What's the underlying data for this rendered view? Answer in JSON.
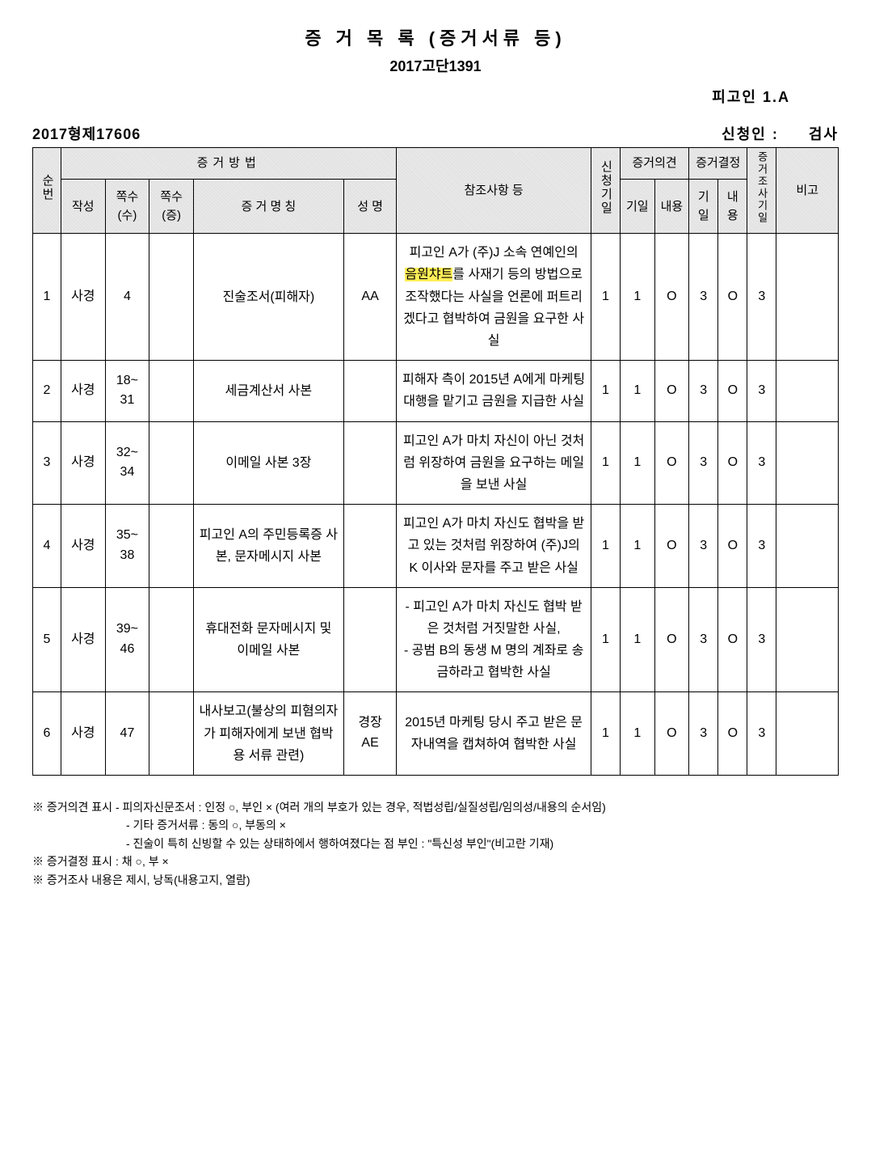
{
  "header": {
    "title": "증 거 목 록 (증거서류 등)",
    "case_no": "2017고단1391",
    "defendant": "피고인 1.A",
    "file_no": "2017형제17606",
    "applicant_label": "신청인 :",
    "applicant_role": "검사"
  },
  "table": {
    "group_method": "증거방법",
    "group_opinion": "증거의견",
    "group_decision": "증거결정",
    "col_num": "순번",
    "col_author": "작성",
    "col_page_su": "쪽수(수)",
    "col_page_jeung": "쪽수(증)",
    "col_evidence_name": "증 거 명 칭",
    "col_subject_name": "성 명",
    "col_reference": "참조사항 등",
    "col_request_date": "신청기일",
    "col_opinion_date": "기일",
    "col_opinion_content": "내용",
    "col_decision_date": "기일",
    "col_decision_content": "내용",
    "col_investigation_date": "증거조사기일",
    "col_note": "비고"
  },
  "rows": [
    {
      "num": "1",
      "author": "사경",
      "page_su": "4",
      "page_jeung": "",
      "evidence_name": "진술조서(피해자)",
      "subject_name": "AA",
      "reference_pre": "피고인 A가 (주)J 소속 연예인의 ",
      "reference_hl": "음원챠트",
      "reference_post": "를 사재기 등의 방법으로 조작했다는 사실을 언론에 퍼트리겠다고 협박하여 금원을 요구한 사실",
      "req_date": "1",
      "op_date": "1",
      "op_content": "O",
      "dec_date": "3",
      "dec_content": "O",
      "inv_date": "3",
      "note": ""
    },
    {
      "num": "2",
      "author": "사경",
      "page_su": "18~ 31",
      "page_jeung": "",
      "evidence_name": "세금계산서 사본",
      "subject_name": "",
      "reference_pre": "피해자 측이 2015년 A에게 마케팅 대행을 맡기고 금원을 지급한 사실",
      "reference_hl": "",
      "reference_post": "",
      "req_date": "1",
      "op_date": "1",
      "op_content": "O",
      "dec_date": "3",
      "dec_content": "O",
      "inv_date": "3",
      "note": ""
    },
    {
      "num": "3",
      "author": "사경",
      "page_su": "32~ 34",
      "page_jeung": "",
      "evidence_name": "이메일 사본 3장",
      "subject_name": "",
      "reference_pre": "피고인 A가 마치 자신이 아닌 것처럼 위장하여 금원을 요구하는 메일을 보낸 사실",
      "reference_hl": "",
      "reference_post": "",
      "req_date": "1",
      "op_date": "1",
      "op_content": "O",
      "dec_date": "3",
      "dec_content": "O",
      "inv_date": "3",
      "note": ""
    },
    {
      "num": "4",
      "author": "사경",
      "page_su": "35~ 38",
      "page_jeung": "",
      "evidence_name": "피고인 A의 주민등록증 사본, 문자메시지 사본",
      "subject_name": "",
      "reference_pre": "피고인 A가 마치 자신도 협박을 받고 있는 것처럼 위장하여 (주)J의 K 이사와 문자를 주고 받은 사실",
      "reference_hl": "",
      "reference_post": "",
      "req_date": "1",
      "op_date": "1",
      "op_content": "O",
      "dec_date": "3",
      "dec_content": "O",
      "inv_date": "3",
      "note": ""
    },
    {
      "num": "5",
      "author": "사경",
      "page_su": "39~ 46",
      "page_jeung": "",
      "evidence_name": "휴대전화 문자메시지 및 이메일 사본",
      "subject_name": "",
      "reference_pre": "- 피고인 A가 마치 자신도 협박 받은 것처럼 거짓말한 사실,\n- 공범 B의 동생 M 명의 계좌로 송금하라고 협박한 사실",
      "reference_hl": "",
      "reference_post": "",
      "req_date": "1",
      "op_date": "1",
      "op_content": "O",
      "dec_date": "3",
      "dec_content": "O",
      "inv_date": "3",
      "note": ""
    },
    {
      "num": "6",
      "author": "사경",
      "page_su": "47",
      "page_jeung": "",
      "evidence_name": "내사보고(불상의 피혐의자가 피해자에게 보낸 협박용 서류 관련)",
      "subject_name": "경장 AE",
      "reference_pre": "2015년 마케팅 당시 주고 받은 문자내역을 캡쳐하여 협박한 사실",
      "reference_hl": "",
      "reference_post": "",
      "req_date": "1",
      "op_date": "1",
      "op_content": "O",
      "dec_date": "3",
      "dec_content": "O",
      "inv_date": "3",
      "note": ""
    }
  ],
  "footnotes": {
    "l1": "※ 증거의견 표시 - 피의자신문조서 : 인정 ○, 부인 × (여러 개의 부호가 있는 경우, 적법성립/실질성립/임의성/내용의 순서임)",
    "l2": "- 기타 증거서류 : 동의 ○, 부동의 ×",
    "l3": "- 진술이 특히 신빙할 수 있는 상태하에서 행하여졌다는 점 부인 : \"특신성 부인\"(비고란 기재)",
    "l4": "※ 증거결정 표시 : 채 ○, 부 ×",
    "l5": "※ 증거조사 내용은 제시, 낭독(내용고지, 열람)"
  }
}
